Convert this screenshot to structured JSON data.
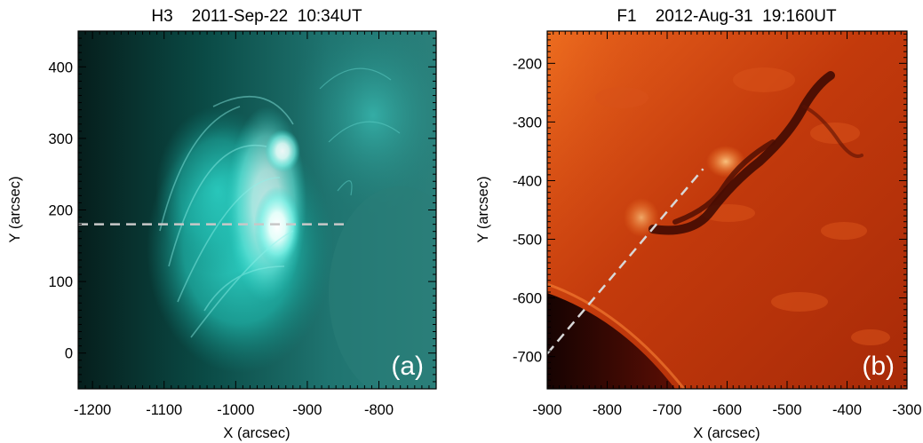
{
  "panels": [
    {
      "id": "a",
      "title": "H3    2011-Sep-22  10:34UT",
      "letter": "(a)",
      "xlabel": "X (arcsec)",
      "ylabel": "Y (arcsec)",
      "xlim": [
        -1220,
        -720
      ],
      "ylim": [
        -50,
        450
      ],
      "xticks": [
        -1200,
        -1100,
        -1000,
        -900,
        -800
      ],
      "yticks": [
        0,
        100,
        200,
        300,
        400
      ],
      "xtick_labels": [
        "-1200",
        "-1100",
        "-1000",
        "-900",
        "-800"
      ],
      "ytick_labels": [
        "0",
        "100",
        "200",
        "300",
        "400"
      ],
      "image": {
        "colormap": "teal",
        "background": "#052a27",
        "subject": "bright looped flare region near solar limb"
      },
      "slit": {
        "x1": -1220,
        "y1": 180,
        "x2": -845,
        "y2": 180,
        "color": "#c8c8c8",
        "style": "dashed"
      }
    },
    {
      "id": "b",
      "title": "F1    2012-Aug-31  19:160UT",
      "letter": "(b)",
      "xlabel": "X (arcsec)",
      "ylabel": "Y (arcsec)",
      "xlim": [
        -900,
        -300
      ],
      "ylim": [
        -755,
        -145
      ],
      "xticks": [
        -900,
        -800,
        -700,
        -600,
        -500,
        -400,
        -300
      ],
      "yticks": [
        -700,
        -600,
        -500,
        -400,
        -300,
        -200
      ],
      "xtick_labels": [
        "-900",
        "-800",
        "-700",
        "-600",
        "-500",
        "-400",
        "-300"
      ],
      "ytick_labels": [
        "-700",
        "-600",
        "-500",
        "-400",
        "-300",
        "-200"
      ],
      "image": {
        "colormap": "red",
        "background": "#b52a08",
        "subject": "solar disk with dark filament channel near limb"
      },
      "slit": {
        "x1": -900,
        "y1": -695,
        "x2": -640,
        "y2": -380,
        "color": "#d8d8d8",
        "style": "dashed"
      }
    }
  ]
}
